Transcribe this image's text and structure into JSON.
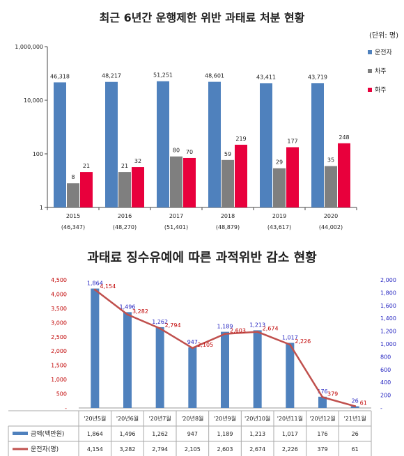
{
  "chart_data": [
    {
      "type": "bar",
      "title": "최근 6년간 운행제한 위반 과태료 처분 현황",
      "unit_label": "(단위: 명)",
      "yscale": "log",
      "ylim": [
        1,
        1000000
      ],
      "yticks": [
        "1",
        "100",
        "10,000",
        "1,000,000"
      ],
      "categories": [
        "2015",
        "2016",
        "2017",
        "2018",
        "2019",
        "2020"
      ],
      "category_totals": [
        "(46,347)",
        "(48,270)",
        "(51,401)",
        "(48,879)",
        "(43,617)",
        "(44,002)"
      ],
      "series": [
        {
          "name": "운전자",
          "color": "#4f81bd",
          "values": [
            46318,
            48217,
            51251,
            48601,
            43411,
            43719
          ],
          "labels": [
            "46,318",
            "48,217",
            "51,251",
            "48,601",
            "43,411",
            "43,719"
          ]
        },
        {
          "name": "차주",
          "color": "#7f7f7f",
          "values": [
            8,
            21,
            80,
            59,
            29,
            35
          ],
          "labels": [
            "8",
            "21",
            "80",
            "59",
            "29",
            "35"
          ]
        },
        {
          "name": "화주",
          "color": "#e8003c",
          "values": [
            21,
            32,
            70,
            219,
            177,
            248
          ],
          "labels": [
            "21",
            "32",
            "70",
            "219",
            "177",
            "248"
          ]
        }
      ],
      "legend_position": "right",
      "grid": false
    },
    {
      "type": "bar",
      "title": "과태료 징수유예에 따른 과적위반 감소 현황",
      "categories": [
        "'20년5월",
        "'20년6월",
        "'20년7월",
        "'20년8월",
        "'20년9월",
        "'20년10월",
        "'20년11월",
        "'20년12월",
        "'21년1월"
      ],
      "left_axis": {
        "ylim": [
          0,
          4500
        ],
        "ticks": [
          "-",
          "500",
          "1,000",
          "1,500",
          "2,000",
          "2,500",
          "3,000",
          "3,500",
          "4,000",
          "4,500"
        ],
        "color": "#c00000"
      },
      "right_axis": {
        "ylim": [
          0,
          2000
        ],
        "ticks": [
          "-",
          "200",
          "400",
          "600",
          "800",
          "1,000",
          "1,200",
          "1,400",
          "1,600",
          "1,800",
          "2,000"
        ],
        "color": "#1f1fbf"
      },
      "series": [
        {
          "name": "금액(백만원)",
          "type": "bar",
          "axis": "right",
          "color": "#4f81bd",
          "values": [
            1864,
            1496,
            1262,
            947,
            1189,
            1213,
            1017,
            176,
            26
          ],
          "labels": [
            "1,864",
            "1,496",
            "1,262",
            "947",
            "1,189",
            "1,213",
            "1,017",
            "176",
            "26"
          ]
        },
        {
          "name": "운전자(명)",
          "type": "line",
          "axis": "left",
          "color": "#c0504d",
          "values": [
            4154,
            3282,
            2794,
            2105,
            2603,
            2674,
            2226,
            379,
            61
          ],
          "labels": [
            "4,154",
            "3,282",
            "2,794",
            "2,105",
            "2,603",
            "2,674",
            "2,226",
            "379",
            "61"
          ]
        }
      ],
      "data_table": true,
      "grid": false
    }
  ]
}
